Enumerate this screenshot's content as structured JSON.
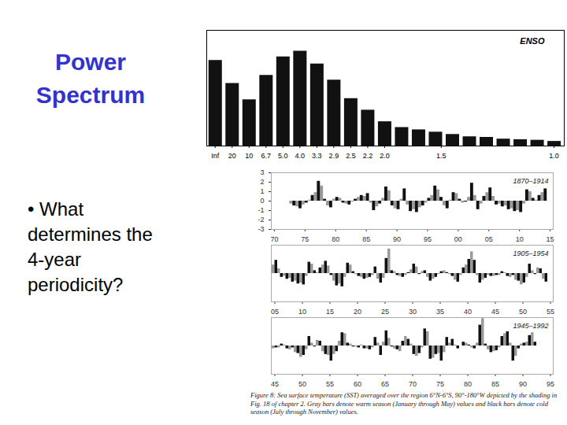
{
  "slide": {
    "title": "Power Spectrum",
    "bullet": "• What determines the 4-year periodicity?",
    "caption": "Figure 8: Sea surface temperature (SST) averaged over the region 6°N-6°S, 90°-180°W depicted by the shading in Fig. 18 of chapter 2. Gray bars denote warm season (January through May) values and black bars denote cold season (July through November) values."
  },
  "chart_data": [
    {
      "type": "bar",
      "annotation": "ENSO",
      "color": "#111111",
      "x": [
        0,
        0.05,
        0.1,
        0.15,
        0.2,
        0.25,
        0.3,
        0.35,
        0.4,
        0.45,
        0.5,
        0.55,
        0.6,
        0.65,
        0.7,
        0.75,
        0.8,
        0.85,
        0.9,
        0.95,
        1.0
      ],
      "values": [
        0.74,
        0.54,
        0.4,
        0.61,
        0.77,
        0.82,
        0.71,
        0.57,
        0.41,
        0.31,
        0.21,
        0.16,
        0.14,
        0.12,
        0.1,
        0.08,
        0.075,
        0.06,
        0.055,
        0.05,
        0.04
      ],
      "xlim": [
        -0.025,
        1.03
      ],
      "ylim": [
        0,
        1
      ],
      "xticks": [
        {
          "value": 0,
          "label": "Inf"
        },
        {
          "value": 0.05,
          "label": "20"
        },
        {
          "value": 0.1,
          "label": "10"
        },
        {
          "value": 0.15,
          "label": "6.7"
        },
        {
          "value": 0.2,
          "label": "5.0"
        },
        {
          "value": 0.25,
          "label": "4.0"
        },
        {
          "value": 0.3,
          "label": "3.3"
        },
        {
          "value": 0.35,
          "label": "2.9"
        },
        {
          "value": 0.4,
          "label": "2.5"
        },
        {
          "value": 0.45,
          "label": "2.2"
        },
        {
          "value": 0.5,
          "label": "2.0"
        },
        {
          "value": 0.667,
          "label": "1.5"
        },
        {
          "value": 1,
          "label": "1.0"
        }
      ],
      "tick_labels": "x"
    },
    {
      "type": "bar",
      "annotation": "1870–1914",
      "categories": [
        "70",
        null,
        null,
        null,
        null,
        "75",
        null,
        null,
        null,
        null,
        "80",
        null,
        null,
        null,
        null,
        "85",
        null,
        null,
        null,
        null,
        "90",
        null,
        null,
        null,
        null,
        "95",
        null,
        null,
        null,
        null,
        "00",
        null,
        null,
        null,
        null,
        "05",
        null,
        null,
        null,
        null,
        "10",
        null,
        null,
        null,
        null,
        "15"
      ],
      "series": [
        {
          "color": "#9a9a9a",
          "values": [
            null,
            null,
            null,
            -0.3,
            -0.6,
            -0.4,
            0.1,
            0.9,
            1.6,
            -0.5,
            0.2,
            0.3,
            -0.3,
            -0.1,
            0.4,
            0.5,
            -0.2,
            -0.6,
            0.3,
            1.1,
            -0.8,
            0.2,
            -0.4,
            -0.9,
            -0.7,
            -0.2,
            0.6,
            1.2,
            -0.5,
            0.1,
            0.8,
            -0.2,
            0.4,
            0.6,
            -0.3,
            0.9,
            0.5,
            -0.3,
            -0.5,
            -0.8,
            -1.0,
            -0.3,
            1.0,
            0.1,
            0.9,
            null
          ]
        },
        {
          "color": "#111111",
          "values": [
            null,
            null,
            null,
            -0.5,
            -0.8,
            -0.2,
            0.6,
            2.1,
            0.2,
            -0.7,
            0.4,
            -0.2,
            -0.4,
            0.2,
            0.6,
            0.8,
            -1.0,
            -0.3,
            1.5,
            -0.5,
            -0.9,
            1.3,
            -1.1,
            -1.2,
            -0.5,
            0.3,
            1.6,
            0.4,
            -0.8,
            0.9,
            0.2,
            -0.1,
            1.9,
            -0.9,
            0.5,
            1.4,
            -0.4,
            -0.6,
            -0.9,
            -1.1,
            -1.2,
            1.2,
            0.3,
            0.6,
            1.3,
            null
          ]
        }
      ],
      "ylim": [
        -3,
        3
      ],
      "yticks": [
        -3,
        -2,
        -1,
        0,
        1,
        2,
        3
      ]
    },
    {
      "type": "bar",
      "annotation": "1905–1954",
      "categories": [
        "05",
        null,
        null,
        null,
        null,
        "10",
        null,
        null,
        null,
        null,
        "15",
        null,
        null,
        null,
        null,
        "20",
        null,
        null,
        null,
        null,
        "25",
        null,
        null,
        null,
        null,
        "30",
        null,
        null,
        null,
        null,
        "35",
        null,
        null,
        null,
        null,
        "40",
        null,
        null,
        null,
        null,
        "45",
        null,
        null,
        null,
        null,
        "50",
        null,
        null,
        null,
        null,
        "55"
      ],
      "series": [
        {
          "color": "#9a9a9a",
          "values": [
            0.9,
            0.5,
            -0.3,
            -0.5,
            -0.8,
            -1.0,
            -0.3,
            1.0,
            0.1,
            0.9,
            0.8,
            -0.8,
            -1.1,
            -0.4,
            0.9,
            -0.1,
            -0.4,
            -0.5,
            -0.2,
            -0.6,
            -0.5,
            2.6,
            0.2,
            -0.3,
            -0.2,
            0.4,
            0.7,
            0.2,
            -0.4,
            -0.6,
            -0.1,
            0.3,
            -0.1,
            -0.7,
            -0.2,
            0.9,
            2.3,
            -0.2,
            -0.7,
            -0.2,
            -0.3,
            -0.2,
            0.1,
            -0.4,
            -0.7,
            -1.2,
            -0.4,
            0.3,
            0.6,
            -0.6,
            null
          ]
        },
        {
          "color": "#111111",
          "values": [
            1.4,
            -0.4,
            -0.6,
            -0.9,
            -1.1,
            -1.2,
            1.2,
            0.3,
            0.6,
            1.3,
            -0.2,
            -1.3,
            -1.4,
            1.1,
            0.2,
            -0.3,
            -0.6,
            -0.4,
            0.7,
            -1.0,
            1.6,
            0.3,
            -0.2,
            -0.4,
            0.1,
            1.0,
            -0.1,
            0.3,
            -0.8,
            -0.4,
            0.2,
            0.1,
            -0.3,
            -0.9,
            0.6,
            1.5,
            1.4,
            -1.0,
            -0.5,
            -0.3,
            -0.2,
            0.2,
            -0.3,
            -0.2,
            -0.8,
            -1.0,
            1.0,
            -0.1,
            0.5,
            -0.9,
            null
          ]
        }
      ],
      "ylim": [
        -3,
        3
      ],
      "tick_labels": "x"
    },
    {
      "type": "bar",
      "annotation": "1945–1992",
      "categories": [
        "45",
        null,
        null,
        null,
        null,
        "50",
        null,
        null,
        null,
        null,
        "55",
        null,
        null,
        null,
        null,
        "60",
        null,
        null,
        null,
        null,
        "65",
        null,
        null,
        null,
        null,
        "70",
        null,
        null,
        null,
        null,
        "75",
        null,
        null,
        null,
        null,
        "80",
        null,
        null,
        null,
        null,
        "85",
        null,
        null,
        null,
        null,
        "90",
        null,
        null,
        null,
        null,
        "95"
      ],
      "series": [
        {
          "color": "#9a9a9a",
          "values": [
            -0.3,
            -0.2,
            0.1,
            -0.4,
            -0.7,
            -1.2,
            -0.4,
            0.3,
            0.6,
            -0.6,
            -1.0,
            -0.9,
            0.5,
            1.3,
            0.2,
            -0.1,
            0.1,
            -0.3,
            -0.2,
            0.3,
            0.4,
            0.8,
            -0.3,
            -0.6,
            1.0,
            0.2,
            -1.1,
            -0.2,
            1.5,
            -1.3,
            -0.8,
            -0.7,
            0.3,
            0.1,
            0.0,
            0.3,
            -0.2,
            0.3,
            2.9,
            -0.4,
            -0.6,
            -0.2,
            1.3,
            0.3,
            -1.1,
            0.2,
            0.4,
            1.4,
            null,
            null,
            null
          ]
        },
        {
          "color": "#111111",
          "values": [
            -0.2,
            0.2,
            -0.3,
            -0.2,
            -0.8,
            -1.0,
            1.0,
            -0.1,
            0.5,
            -0.9,
            -1.6,
            -0.6,
            1.4,
            0.3,
            -0.1,
            -0.2,
            -0.3,
            -0.4,
            0.9,
            -1.0,
            1.6,
            -0.1,
            -0.4,
            0.5,
            0.7,
            -0.9,
            -0.8,
            1.8,
            -1.4,
            -0.9,
            -1.6,
            0.9,
            0.7,
            -0.3,
            0.4,
            0.1,
            -0.3,
            2.2,
            0.2,
            -0.7,
            -0.5,
            1.0,
            1.5,
            -1.6,
            -0.3,
            0.3,
            1.1,
            0.4,
            null,
            null,
            null
          ]
        }
      ],
      "ylim": [
        -3,
        3
      ],
      "tick_labels": "x"
    }
  ]
}
